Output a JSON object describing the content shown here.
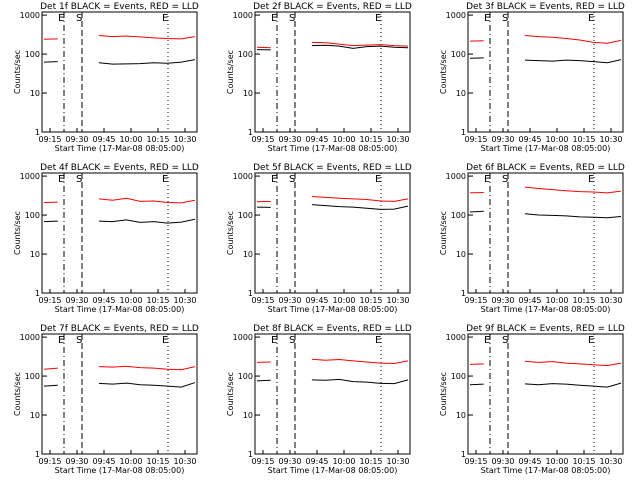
{
  "figure": {
    "xlabel": "Start Time (17-Mar-08 08:05:00)",
    "ylabel": "Counts/sec",
    "x_tick_labels": [
      "09:15",
      "09:30",
      "09:45",
      "10:00",
      "10:15",
      "10:30"
    ],
    "y_tick_labels": [
      "1",
      "10",
      "100",
      "1000"
    ],
    "colors": {
      "events": "#000000",
      "lld": "#ff0000",
      "axes": "#000000"
    }
  },
  "chart_data": [
    {
      "type": "line",
      "title": "Det 1f BLACK = Events, RED = LLD",
      "markers": [
        "E",
        "S",
        "E"
      ],
      "log_y": true,
      "ylim": [
        1,
        1200
      ],
      "series": [
        {
          "values": [
            62,
            64,
            60,
            58,
            60,
            55,
            56,
            57,
            60,
            58,
            62,
            72
          ]
        },
        {
          "values": [
            240,
            245,
            235,
            330,
            300,
            280,
            290,
            275,
            260,
            250,
            245,
            280
          ]
        }
      ]
    },
    {
      "type": "line",
      "title": "Det 2f BLACK = Events, RED = LLD",
      "markers": [
        "E",
        "S",
        "E"
      ],
      "log_y": true,
      "ylim": [
        1,
        1200
      ],
      "series": [
        {
          "values": [
            130,
            128,
            135,
            170,
            165,
            168,
            160,
            140,
            155,
            160,
            150,
            145
          ]
        },
        {
          "values": [
            150,
            145,
            150,
            240,
            200,
            195,
            180,
            165,
            170,
            175,
            165,
            160
          ]
        }
      ]
    },
    {
      "type": "line",
      "title": "Det 3f BLACK = Events, RED = LLD",
      "markers": [
        "E",
        "S",
        "E"
      ],
      "log_y": true,
      "ylim": [
        1,
        1200
      ],
      "series": [
        {
          "values": [
            78,
            80,
            75,
            72,
            70,
            68,
            66,
            70,
            68,
            64,
            60,
            72
          ]
        },
        {
          "values": [
            215,
            220,
            210,
            340,
            300,
            280,
            270,
            250,
            230,
            200,
            190,
            225
          ]
        }
      ]
    },
    {
      "type": "line",
      "title": "Det 4f BLACK = Events, RED = LLD",
      "markers": [
        "E",
        "S",
        "E"
      ],
      "log_y": true,
      "ylim": [
        1,
        1200
      ],
      "series": [
        {
          "values": [
            68,
            70,
            66,
            72,
            70,
            68,
            75,
            65,
            68,
            62,
            66,
            78
          ]
        },
        {
          "values": [
            210,
            215,
            205,
            280,
            260,
            240,
            270,
            225,
            230,
            210,
            205,
            240
          ]
        }
      ]
    },
    {
      "type": "line",
      "title": "Det 5f BLACK = Events, RED = LLD",
      "markers": [
        "E",
        "S",
        "E"
      ],
      "log_y": true,
      "ylim": [
        1,
        1200
      ],
      "series": [
        {
          "values": [
            160,
            158,
            165,
            200,
            185,
            175,
            165,
            160,
            150,
            140,
            142,
            170
          ]
        },
        {
          "values": [
            220,
            225,
            215,
            330,
            300,
            285,
            270,
            260,
            250,
            230,
            225,
            260
          ]
        }
      ]
    },
    {
      "type": "line",
      "title": "Det 6f BLACK = Events, RED = LLD",
      "markers": [
        "E",
        "S",
        "E"
      ],
      "log_y": true,
      "ylim": [
        1,
        1200
      ],
      "series": [
        {
          "values": [
            120,
            125,
            118,
            110,
            108,
            100,
            98,
            95,
            90,
            88,
            85,
            92
          ]
        },
        {
          "values": [
            370,
            380,
            360,
            560,
            520,
            480,
            450,
            420,
            400,
            390,
            370,
            410
          ]
        }
      ]
    },
    {
      "type": "line",
      "title": "Det 7f BLACK = Events, RED = LLD",
      "markers": [
        "E",
        "S",
        "E"
      ],
      "log_y": true,
      "ylim": [
        1,
        1200
      ],
      "series": [
        {
          "values": [
            55,
            58,
            52,
            70,
            65,
            62,
            66,
            60,
            58,
            55,
            52,
            68
          ]
        },
        {
          "values": [
            150,
            160,
            148,
            195,
            175,
            170,
            178,
            165,
            160,
            150,
            145,
            175
          ]
        }
      ]
    },
    {
      "type": "line",
      "title": "Det 8f BLACK = Events, RED = LLD",
      "markers": [
        "E",
        "S",
        "E"
      ],
      "log_y": true,
      "ylim": [
        1,
        1200
      ],
      "series": [
        {
          "values": [
            75,
            78,
            72,
            85,
            80,
            78,
            82,
            72,
            70,
            65,
            64,
            80
          ]
        },
        {
          "values": [
            225,
            230,
            220,
            290,
            270,
            255,
            265,
            245,
            230,
            215,
            210,
            245
          ]
        }
      ]
    },
    {
      "type": "line",
      "title": "Det 9f BLACK = Events, RED = LLD",
      "markers": [
        "E",
        "S",
        "E"
      ],
      "log_y": true,
      "ylim": [
        1,
        1200
      ],
      "series": [
        {
          "values": [
            60,
            62,
            58,
            65,
            63,
            60,
            64,
            62,
            58,
            55,
            52,
            66
          ]
        },
        {
          "values": [
            200,
            205,
            195,
            260,
            240,
            225,
            235,
            215,
            205,
            195,
            185,
            215
          ]
        }
      ]
    }
  ]
}
